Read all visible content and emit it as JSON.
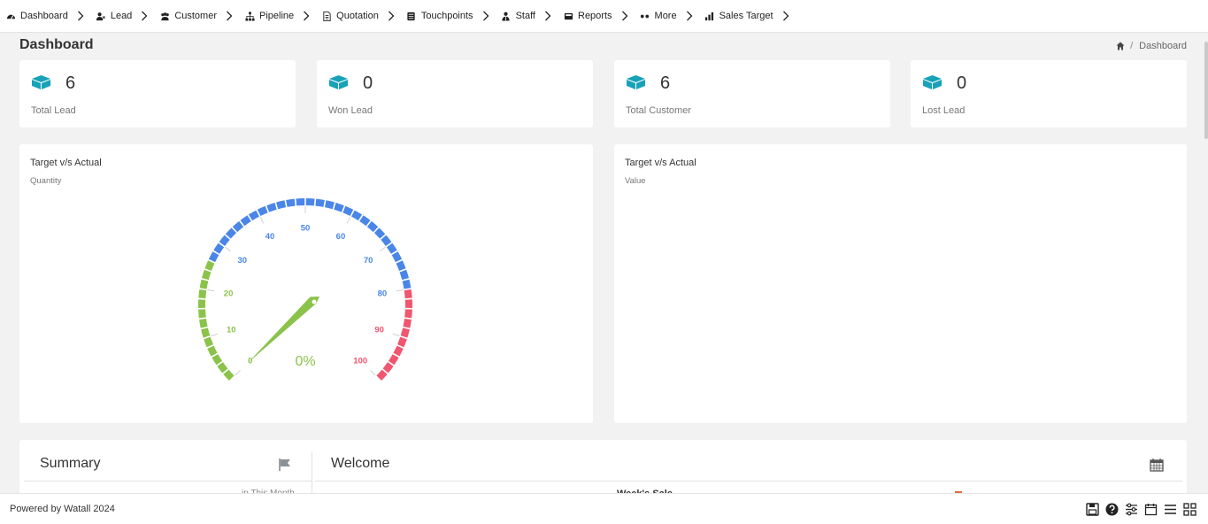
{
  "nav": {
    "items": [
      {
        "label": "Dashboard",
        "icon": "dashboard-icon"
      },
      {
        "label": "Lead",
        "icon": "user-lead-icon"
      },
      {
        "label": "Customer",
        "icon": "users-icon"
      },
      {
        "label": "Pipeline",
        "icon": "sitemap-icon"
      },
      {
        "label": "Quotation",
        "icon": "document-icon"
      },
      {
        "label": "Touchpoints",
        "icon": "list-icon"
      },
      {
        "label": "Staff",
        "icon": "staff-icon"
      },
      {
        "label": "Reports",
        "icon": "reports-icon"
      },
      {
        "label": "More",
        "icon": "dots-icon"
      },
      {
        "label": "Sales Target",
        "icon": "bar-chart-icon"
      }
    ]
  },
  "header": {
    "title": "Dashboard",
    "breadcrumb": {
      "separator": "/",
      "current": "Dashboard"
    }
  },
  "stats": [
    {
      "value": "6",
      "label": "Total Lead"
    },
    {
      "value": "0",
      "label": "Won Lead"
    },
    {
      "value": "6",
      "label": "Total Customer"
    },
    {
      "value": "0",
      "label": "Lost Lead"
    }
  ],
  "panels": {
    "quantity": {
      "title": "Target v/s Actual",
      "subtitle": "Quantity"
    },
    "value": {
      "title": "Target v/s Actual",
      "subtitle": "Value"
    }
  },
  "chart_data": {
    "type": "gauge",
    "min": 0,
    "max": 100,
    "value": 0,
    "value_label": "0%",
    "ticks": [
      0,
      10,
      20,
      30,
      40,
      50,
      60,
      70,
      80,
      90,
      100
    ],
    "bands": [
      {
        "from": 0,
        "to": 25,
        "color": "#8bc34a"
      },
      {
        "from": 25,
        "to": 80,
        "color": "#4a86e8"
      },
      {
        "from": 80,
        "to": 100,
        "color": "#f0566f"
      }
    ],
    "needle_color": "#8bc34a"
  },
  "bottom": {
    "summary_title": "Summary",
    "summary_period": "in This Month",
    "welcome_title": "Welcome",
    "welcome_partial": "Week's Sale"
  },
  "footer": {
    "text": "Powered by Watall 2024",
    "icons": [
      "save-icon",
      "help-icon",
      "sliders-icon",
      "calendar-icon",
      "menu-icon",
      "grid-icon"
    ]
  },
  "colors": {
    "accent_teal": "#17a2b8",
    "gauge_blue": "#4a86e8",
    "gauge_green": "#8bc34a",
    "gauge_red": "#f0566f"
  }
}
